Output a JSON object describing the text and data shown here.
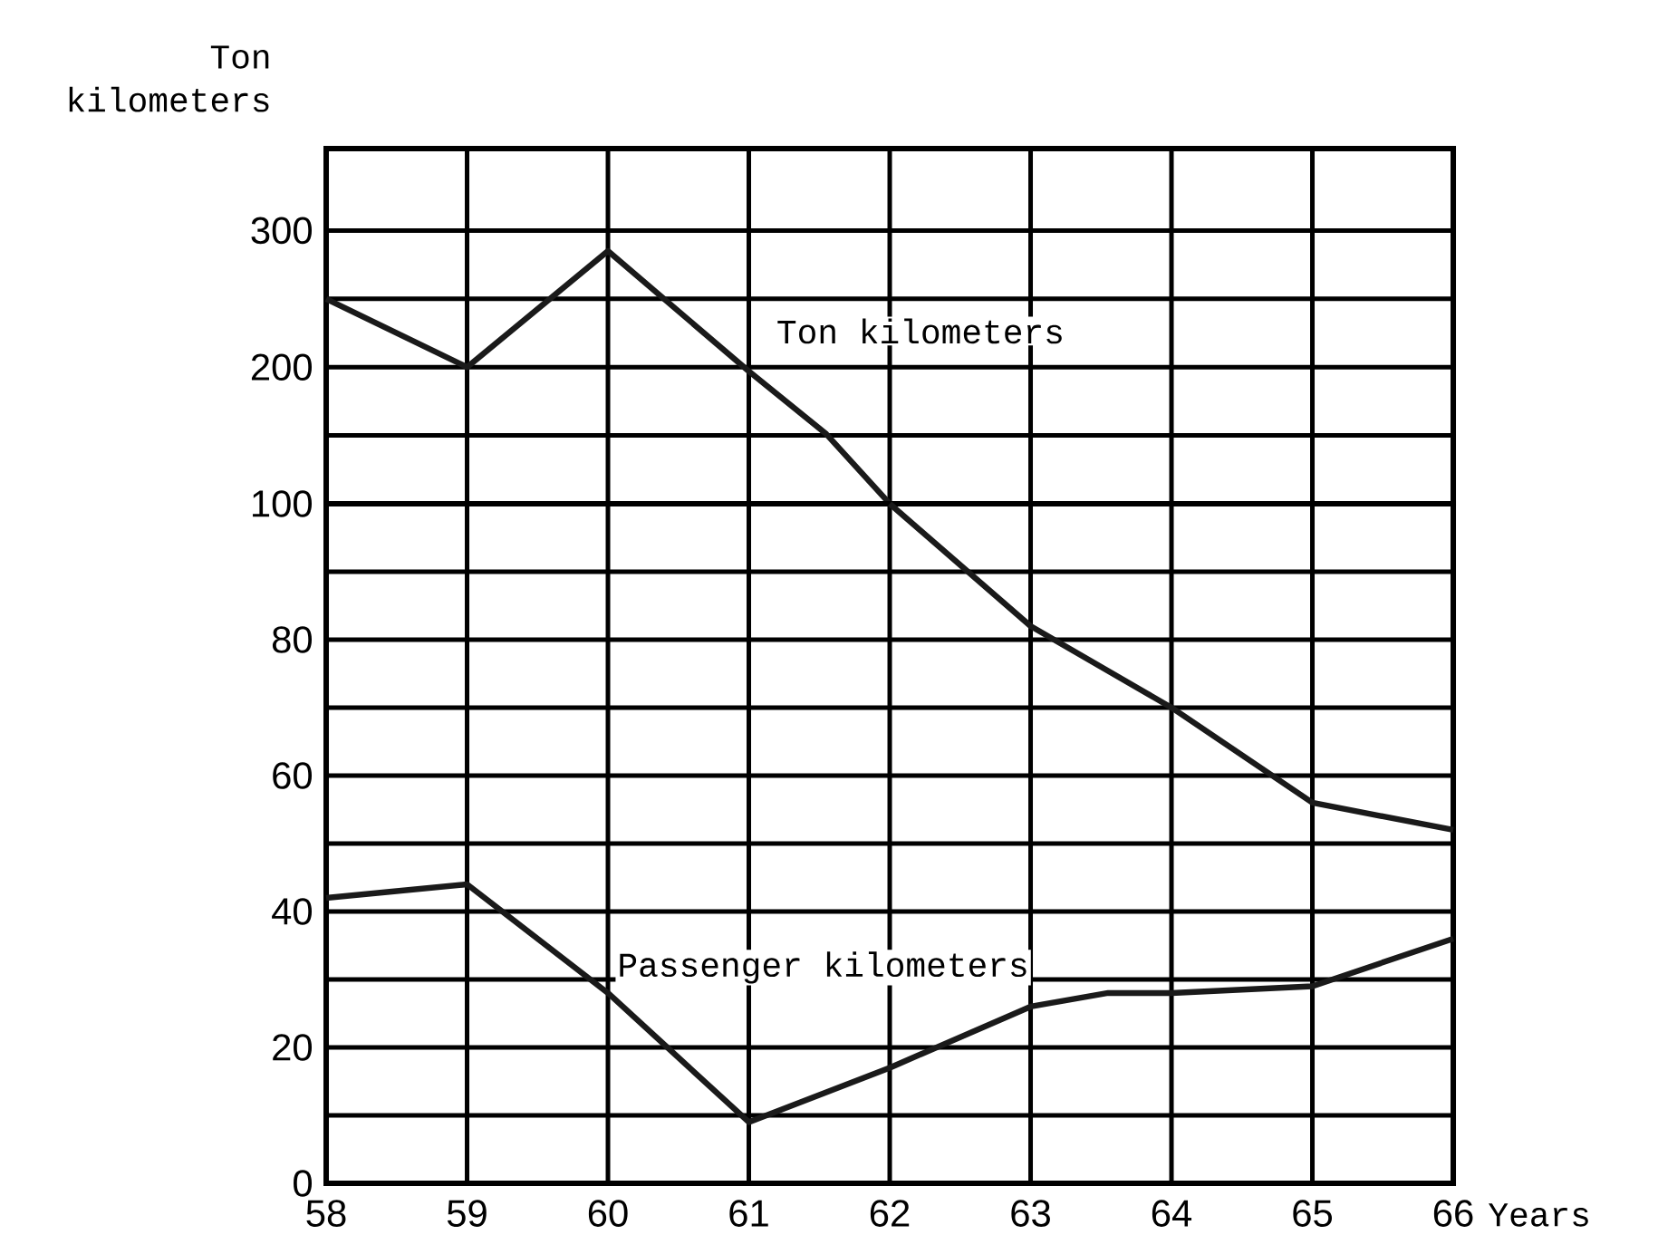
{
  "chart_data": [
    {
      "type": "line",
      "ylabel": "Ton kilometers",
      "xlim": [
        58,
        66
      ],
      "xticks": [
        58,
        59,
        60,
        61,
        62,
        63,
        64,
        65,
        66
      ],
      "ylim": [
        100,
        360
      ],
      "yticks": [
        {
          "value": 150,
          "label": null
        },
        200,
        {
          "value": 250,
          "label": null
        },
        300
      ],
      "grid": true,
      "tick_labels": "y",
      "series": [
        {
          "name": "Ton kilometers",
          "color": "#1a1a1a",
          "x": [
            58,
            59,
            60,
            61,
            61.55,
            62
          ],
          "values": [
            250,
            200,
            285,
            197,
            151,
            100
          ]
        }
      ]
    },
    {
      "type": "line",
      "xlabel": "Years",
      "xlim": [
        58,
        66
      ],
      "xticks": [
        58,
        59,
        60,
        61,
        62,
        63,
        64,
        65,
        66
      ],
      "ylim": [
        0,
        100
      ],
      "yticks": [
        0,
        {
          "value": 10,
          "label": null
        },
        20,
        {
          "value": 30,
          "label": null
        },
        40,
        {
          "value": 50,
          "label": null
        },
        60,
        {
          "value": 70,
          "label": null
        },
        80,
        {
          "value": 90,
          "label": null
        },
        100
      ],
      "grid": true,
      "series": [
        {
          "color": "#1a1a1a",
          "x": [
            62,
            63,
            64,
            65,
            66
          ],
          "values": [
            100,
            82,
            70,
            56,
            52
          ]
        },
        {
          "name": "Passenger kilometers",
          "color": "#1a1a1a",
          "x": [
            58,
            59,
            60,
            61,
            62,
            63,
            63.55,
            64,
            65,
            66
          ],
          "values": [
            42,
            44,
            28,
            9,
            17,
            26,
            28,
            28,
            29,
            36
          ]
        }
      ]
    }
  ]
}
